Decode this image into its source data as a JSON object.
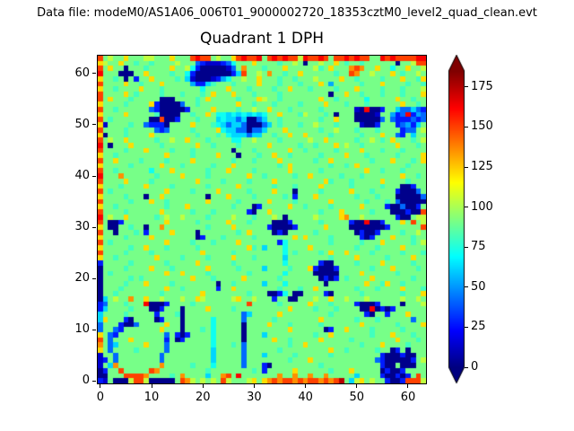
{
  "chart_data": {
    "type": "heatmap",
    "suptitle": "Data file: modeM0/AS1A06_006T01_9000002720_18353cztM0_level2_quad_clean.evt",
    "title": "Quadrant 1 DPH",
    "x_range": [
      -0.5,
      63.5
    ],
    "y_range": [
      -0.5,
      63.5
    ],
    "x_ticks": [
      0,
      10,
      20,
      30,
      40,
      50,
      60
    ],
    "y_ticks": [
      0,
      10,
      20,
      30,
      40,
      50,
      60
    ],
    "grid_on": false,
    "colormap": "jet",
    "colorbar": {
      "vmin": 0,
      "vmax": 185,
      "ticks": [
        0,
        25,
        50,
        75,
        100,
        125,
        150,
        175
      ],
      "extend": "both",
      "position": "right"
    },
    "grid_encoding": {
      "chars": "0123456789abcdef",
      "level_values": [
        2,
        14,
        28,
        42,
        54,
        62,
        72,
        81,
        91,
        104,
        122,
        136,
        150,
        163,
        175,
        185
      ],
      "rows_order": "first row is y=63 (top), last row is y=0 (bottom); each char is one cell x=0..63"
    },
    "rows": [
      "c8988a88899888a888cdcc8988acdccd8cdcdcc9dccdc8ccdcdcc88dcdccccdd",
      "a988a88788788889888321112368 88a8888788980889 88a878878888880889cc",
      "c8a88088878888a88962000001 38b8887888a88888978a888bcb88a88688a889",
      "d88800088a888878862000000025c8898b88788a888888788cb889888a878898",
      "a887808288a888878510001246889 88a888788788898888a88788887888a887a",
      "c8888a887888a888884225788878888a88878887888a84888887888a88887887",
      "a8878888a888788888886 8888a88878888788a8887888878 88a8888788878889",
      "c8888a8788887888788878a888a8887888878888888880 88a88788878887888a",
      "c8a88878888800088 8878a888887888a98878888888a887888886888 88a88788",
      "a888878888a2000038878888888a887888788887888 8a88878887888888a8878",
      "c887888888320000028888a8888788988a88878888878888 8810d00288533532",
      "a8888a888887000088788a8665656565688a888798887808880000188423d243",
      "c87888888800c00288878885655350035887888888878 8a88800000383222323",
      "a188887883222088 88a8887653553000358788878898887888810028 88234258",
      "c8888788888323888878888a655330335888a88888878898887888788 8823389",
      "a088878888a8888888878887865553558878 8a88a88887888887888a88328588",
      "c8988a88888788988a88878888668898888788888988a88888788987 8a888789",
      "d80888a8888878 88888a8878888788888a888887887888a89887888888a88878",
      "c88887888a8888788878888888088878 88888a8878888878888a888788878888",
      "a887888888888a888878888a8880888788a887888887888 8a88878888878888a",
      "c88a88887888878888a8888888788878888a888888788a88888887888a88878a",
      "a88888788888a88878888878 88a8888888878a8888888788 78a8888888887888",
      "c8878888886888a888888788 8a88887888888a8888878888 8888a887888788889",
      "d888b88888878888a88887888 8888a88788888788a88888788878888888a8878",
      "c8888a8888788888888a8888788887888 8a888888888a788878888 8a8888788",
      "a88878888a88887888 888788888a88888878887 8888a88888788888788800288",
      "c878888888888a888878888a8888878888a888088887888 88a88878888200038",
      "a88887888088a88888888088 8a88887888887828 88a8888888788878 88000003",
      "c888887888a887888 8888a8888878 8888a88887888888a88888878887 83000002",
      "a887888888888788 8a88888888788802 88888a8878888788888a888820030028",
      "c88887888888a88888788878888882088a8888888887888a888887888000200c",
      "d8988a8888878988988887888898887888980888 8898888ab889888888200899",
      "c800288888888a88888788888a88878888000288 888788888200d002888a8c89",
      "a80088788088b88888888788 88a8888882000028 8888a888800000002888888c",
      "c8808887828888a888808888 88878a8888020888887888888 802002888878898",
      "a888878888a88888888028887888887888888 8a8a888878888820288 8a888788",
      "c878888888888a888878887 8888a88888882688888888788 8887888a88888789",
      "a88888788a88878888878888 88888a7858886888 8a88888888788878888a8888",
      "c8888788887888888888a88888788888888868788 8878a88a888878888878887",
      "a8878888888a888878888788 88a888788888588888888788 88a8888878888a88",
      "288888788888878 8888a888888788888888868888882008888788 88a88888788",
      "0888878888a88878 88888a88888788885888 87888a2000288888878 88a888878",
      "0878888888888a88a888878888888788888 8688888000008888a888888788888",
      "08888878788888888 8a888788888a8888887888888802028788 88a8888888788",
      "088887888a88887888888880 887888885888688888880 8888888a887a8878888",
      "0888788888888a887888888288a8888888878887 88a88888887888 78888a8887",
      "088788888888788 88888a88888888788800268008888208888878888 8887888a",
      "058988b88a889888988a9888889a889888288008 88988a889888988888898898",
      "238887888d00028888788888 88888c88888788888a88878888200028 88808889",
      "258888788800288808888a88887888 8888888a8888788878 8880 0d0202888888",
      "58888788888288870888888888883588888a88888888878888882088 2888a888",
      "5a88820888802888088888 6888883888887888 88888a88888878887888888388",
      "3888200388888a880888886888880888 8a888788888788 88888a88888878888a",
      "388328888888a88808887868888808 8888888a8888880288a888878888878888",
      "a8328888888883820288886888880888 5888888888788a8888888788 8a888788",
      "c83888a888888280288888688888088888a88788888a888887888 88888a8887",
      "b83588888a88838888888868 88783888888887 88a88888888887888a88887888",
      "a8388887888883888888885888883888 888788888888 8a887888887880280888",
      "1883888888883888888888588888388858888878 8888878888888882 00020088",
      "128388888888388888888858 888838888888878 88a88888888888832 00000289",
      "185b88888888b88888788868888838882088888888878888 8888888200800088",
      "0288c88888cb888888888788 88888878288888a8888887888a888880 20028888",
      "00888ccccb888878b8888588bc8d8888888b88b88b88b88888588882002028c8",
      "2180009cc9000008cb989898c98889a8abcbccbcbccbcbce859a89882002ccc9"
    ]
  }
}
